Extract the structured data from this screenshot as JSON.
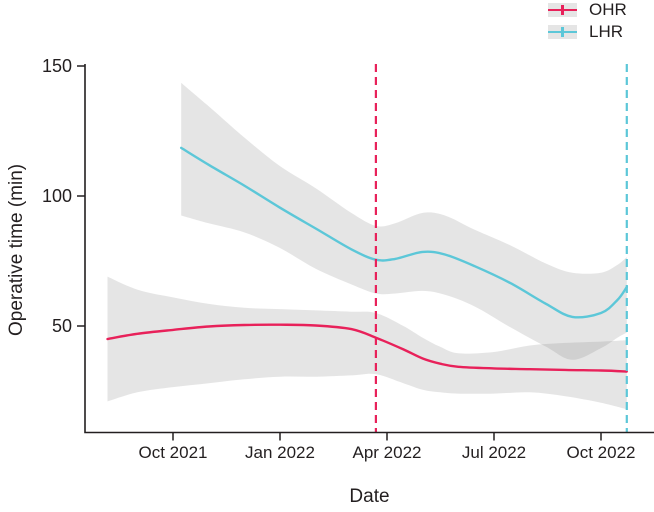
{
  "style": {
    "background": "#ffffff",
    "axis_color": "#231f20",
    "text_color": "#231f20",
    "band_fill": "rgba(130,130,130,0.21)",
    "legend_swatch_bg": "#e5e5e5"
  },
  "legend": {
    "items": [
      {
        "label": "OHR",
        "color": "#e8215a"
      },
      {
        "label": "LHR",
        "color": "#5cc7d8"
      }
    ]
  },
  "chart_data": {
    "type": "line",
    "title": "",
    "xlabel": "Date",
    "ylabel": "Operative time (min)",
    "grid": false,
    "legend_position": "top-right",
    "x_axis": {
      "ticks": [
        {
          "label": "Oct 2021",
          "date": "2021-10-01"
        },
        {
          "label": "Jan 2022",
          "date": "2022-01-01"
        },
        {
          "label": "Apr 2022",
          "date": "2022-04-01"
        },
        {
          "label": "Jul 2022",
          "date": "2022-07-01"
        },
        {
          "label": "Oct 2022",
          "date": "2022-10-01"
        }
      ]
    },
    "y_axis": {
      "ticks": [
        {
          "label": "150",
          "value": 150
        },
        {
          "label": "100",
          "value": 100
        },
        {
          "label": "50",
          "value": 50
        }
      ],
      "range": [
        9,
        151
      ]
    },
    "series": [
      {
        "name": "OHR",
        "color": "#e8215a",
        "vline_date": "2022-03-22",
        "points": [
          {
            "date": "2021-08-06",
            "value": 45.0,
            "lower": 21.0,
            "upper": 69.0
          },
          {
            "date": "2021-09-01",
            "value": 47.0,
            "lower": 24.5,
            "upper": 64.0
          },
          {
            "date": "2021-10-01",
            "value": 48.5,
            "lower": 26.5,
            "upper": 61.0
          },
          {
            "date": "2021-11-01",
            "value": 49.8,
            "lower": 28.0,
            "upper": 58.5
          },
          {
            "date": "2021-12-01",
            "value": 50.4,
            "lower": 29.5,
            "upper": 57.0
          },
          {
            "date": "2022-01-01",
            "value": 50.5,
            "lower": 30.5,
            "upper": 56.5
          },
          {
            "date": "2022-02-01",
            "value": 50.2,
            "lower": 30.5,
            "upper": 56.0
          },
          {
            "date": "2022-03-01",
            "value": 48.8,
            "lower": 31.0,
            "upper": 55.5
          },
          {
            "date": "2022-03-22",
            "value": 45.5,
            "lower": 31.5,
            "upper": 55.0
          },
          {
            "date": "2022-04-15",
            "value": 41.0,
            "lower": 28.0,
            "upper": 50.0
          },
          {
            "date": "2022-05-01",
            "value": 37.5,
            "lower": 25.5,
            "upper": 45.5
          },
          {
            "date": "2022-05-16",
            "value": 35.5,
            "lower": 24.5,
            "upper": 42.0
          },
          {
            "date": "2022-06-01",
            "value": 34.3,
            "lower": 24.0,
            "upper": 39.5
          },
          {
            "date": "2022-07-01",
            "value": 33.7,
            "lower": 24.0,
            "upper": 40.0
          },
          {
            "date": "2022-08-01",
            "value": 33.4,
            "lower": 24.5,
            "upper": 42.5
          },
          {
            "date": "2022-09-01",
            "value": 33.1,
            "lower": 23.0,
            "upper": 43.5
          },
          {
            "date": "2022-10-01",
            "value": 32.9,
            "lower": 20.5,
            "upper": 44.0
          },
          {
            "date": "2022-10-23",
            "value": 32.5,
            "lower": 18.0,
            "upper": 44.5
          }
        ]
      },
      {
        "name": "LHR",
        "color": "#5cc7d8",
        "vline_date": "2022-10-23",
        "points": [
          {
            "date": "2021-10-08",
            "value": 118.5,
            "lower": 92.5,
            "upper": 143.5
          },
          {
            "date": "2021-11-01",
            "value": 112.0,
            "lower": 89.5,
            "upper": 134.5
          },
          {
            "date": "2021-12-01",
            "value": 104.0,
            "lower": 86.0,
            "upper": 122.5
          },
          {
            "date": "2022-01-01",
            "value": 95.5,
            "lower": 80.0,
            "upper": 111.5
          },
          {
            "date": "2022-02-01",
            "value": 87.5,
            "lower": 72.0,
            "upper": 103.0
          },
          {
            "date": "2022-03-01",
            "value": 79.5,
            "lower": 66.0,
            "upper": 93.5
          },
          {
            "date": "2022-03-22",
            "value": 75.5,
            "lower": 62.5,
            "upper": 88.5
          },
          {
            "date": "2022-04-08",
            "value": 75.8,
            "lower": 62.5,
            "upper": 89.5
          },
          {
            "date": "2022-05-01",
            "value": 78.5,
            "lower": 63.5,
            "upper": 93.5
          },
          {
            "date": "2022-05-20",
            "value": 77.5,
            "lower": 62.0,
            "upper": 92.5
          },
          {
            "date": "2022-06-15",
            "value": 73.0,
            "lower": 57.5,
            "upper": 87.0
          },
          {
            "date": "2022-07-15",
            "value": 66.5,
            "lower": 49.5,
            "upper": 81.0
          },
          {
            "date": "2022-08-15",
            "value": 58.5,
            "lower": 42.0,
            "upper": 74.0
          },
          {
            "date": "2022-09-07",
            "value": 53.5,
            "lower": 37.0,
            "upper": 70.5
          },
          {
            "date": "2022-10-01",
            "value": 55.0,
            "lower": 41.5,
            "upper": 70.5
          },
          {
            "date": "2022-10-15",
            "value": 60.0,
            "lower": 45.5,
            "upper": 73.5
          },
          {
            "date": "2022-10-23",
            "value": 65.0,
            "lower": 47.5,
            "upper": 76.5
          }
        ]
      }
    ]
  }
}
